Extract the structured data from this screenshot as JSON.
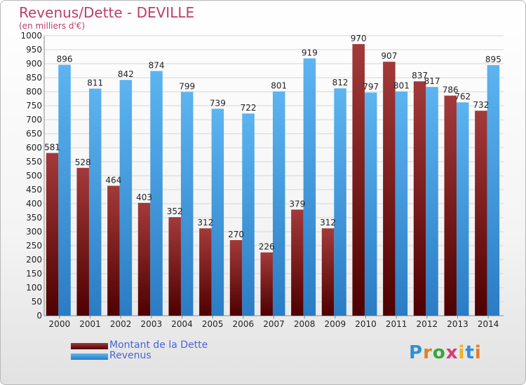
{
  "header": {
    "title": "Revenus/Dette - DEVILLE",
    "subtitle": "(en milliers d'€)"
  },
  "chart_data": {
    "type": "bar",
    "title": "Revenus/Dette - DEVILLE",
    "subtitle": "(en milliers d'€)",
    "categories": [
      "2000",
      "2001",
      "2002",
      "2003",
      "2004",
      "2005",
      "2006",
      "2007",
      "2008",
      "2009",
      "2010",
      "2011",
      "2012",
      "2013",
      "2014"
    ],
    "series": [
      {
        "name": "Montant de la Dette",
        "color": "#8b1e1e",
        "values": [
          581,
          528,
          464,
          403,
          352,
          312,
          270,
          226,
          379,
          312,
          970,
          907,
          837,
          786,
          732
        ]
      },
      {
        "name": "Revenus",
        "color": "#3a9ee4",
        "values": [
          896,
          811,
          842,
          874,
          799,
          739,
          722,
          801,
          919,
          812,
          797,
          801,
          817,
          762,
          895
        ]
      }
    ],
    "ylim": [
      0,
      1000
    ],
    "ytick_step": 50,
    "grid": true,
    "legend_position": "bottom-left"
  },
  "legend": {
    "items": [
      {
        "label": "Montant de la Dette",
        "color": "#8b1e1e"
      },
      {
        "label": "Revenus",
        "color": "#3a9ee4"
      }
    ]
  },
  "logo": {
    "text": "Proxiti"
  }
}
